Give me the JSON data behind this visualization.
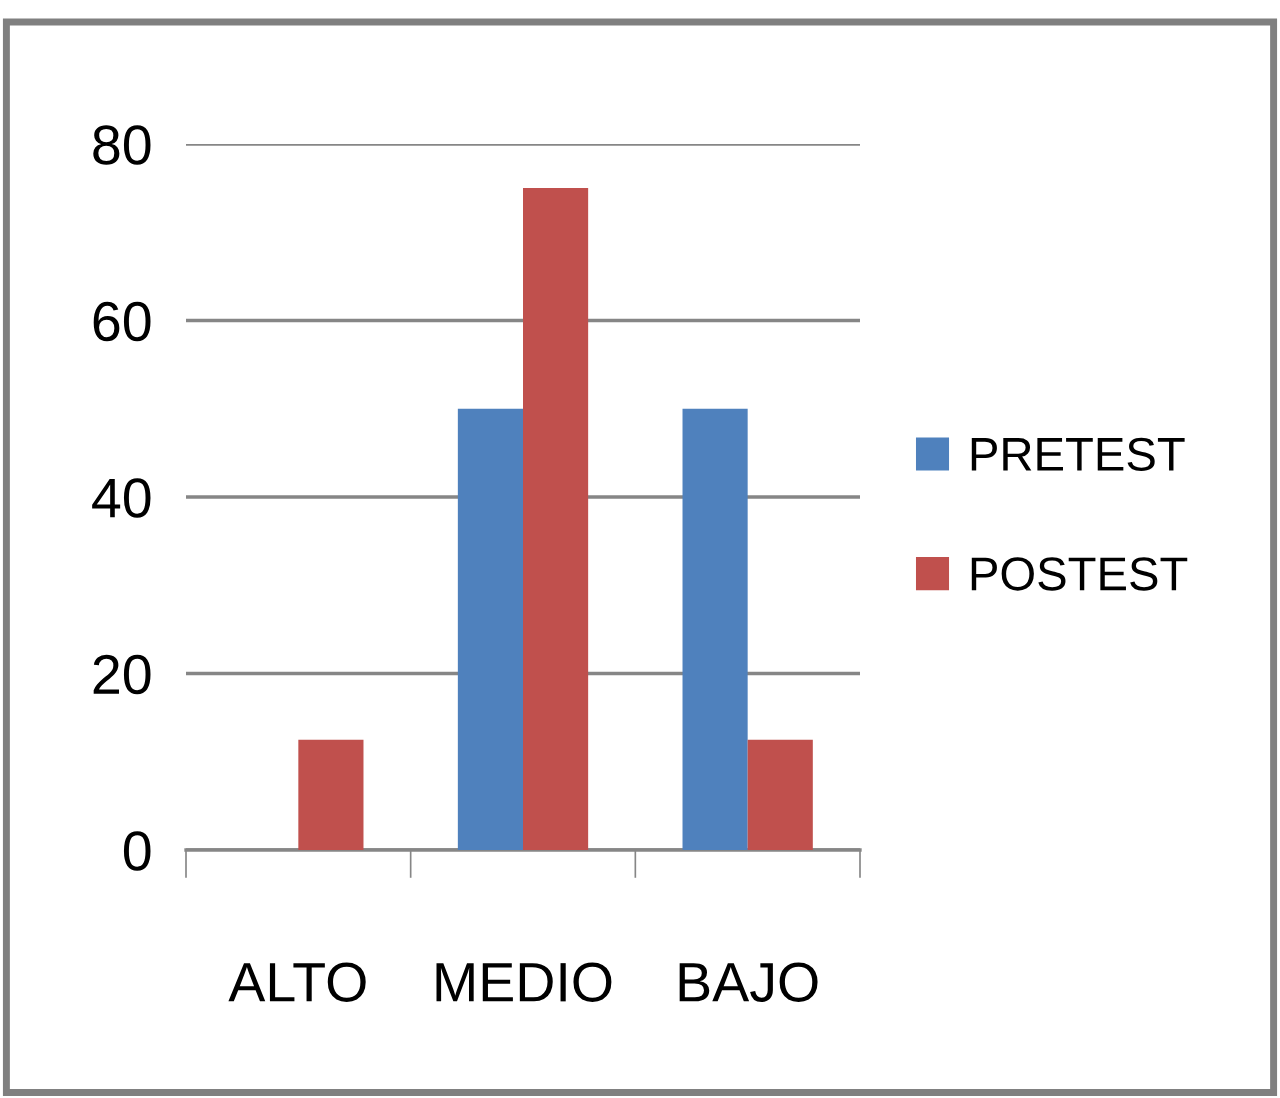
{
  "chart_data": {
    "type": "bar",
    "categories": [
      "ALTO",
      "MEDIO",
      "BAJO"
    ],
    "series": [
      {
        "name": "PRETEST",
        "color": "#4f81bd",
        "values": [
          0,
          50,
          50
        ]
      },
      {
        "name": "POSTEST",
        "color": "#c0504d",
        "values": [
          12.5,
          75,
          12.5
        ]
      }
    ],
    "ylim": [
      0,
      80
    ],
    "yticks": [
      0,
      20,
      40,
      60,
      80
    ],
    "grid": "y",
    "legend": "right"
  }
}
